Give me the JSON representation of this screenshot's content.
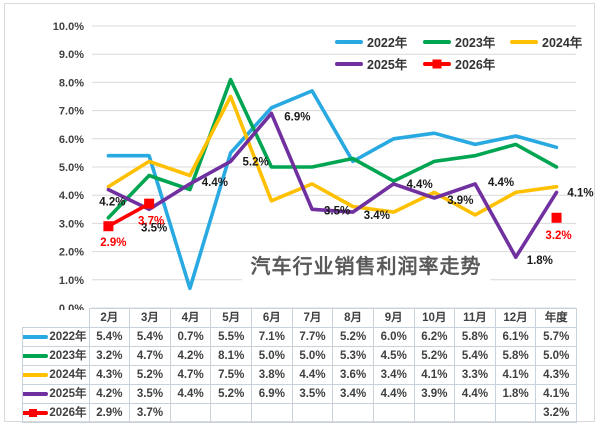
{
  "chart_data": {
    "type": "line",
    "title": "汽车行业销售利润率走势",
    "title_color": "#595959",
    "categories": [
      "2月",
      "3月",
      "4月",
      "5月",
      "6月",
      "7月",
      "8月",
      "9月",
      "10月",
      "11月",
      "12月",
      "年度"
    ],
    "y_axis": {
      "min": 0,
      "max": 10,
      "step": 1,
      "grid": true,
      "tick_labels": [
        "0.0%",
        "1.0%",
        "2.0%",
        "3.0%",
        "4.0%",
        "5.0%",
        "6.0%",
        "7.0%",
        "8.0%",
        "9.0%",
        "10.0%"
      ],
      "grid_color": "#d8d8d8",
      "tick_color": "#404040"
    },
    "legend": {
      "position": "top",
      "rows": [
        [
          "2022年",
          "2023年",
          "2024年"
        ],
        [
          "2025年",
          "2026年"
        ]
      ]
    },
    "series": [
      {
        "name": "2022年",
        "color": "#29A9E1",
        "marker": "none",
        "show_labels": false,
        "values": [
          5.4,
          5.4,
          0.7,
          5.5,
          7.1,
          7.7,
          5.2,
          6.0,
          6.2,
          5.8,
          6.1,
          5.7
        ]
      },
      {
        "name": "2023年",
        "color": "#00A551",
        "marker": "none",
        "show_labels": false,
        "values": [
          3.2,
          4.7,
          4.2,
          8.1,
          5.0,
          5.0,
          5.3,
          4.5,
          5.2,
          5.4,
          5.8,
          5.0
        ]
      },
      {
        "name": "2024年",
        "color": "#FFC000",
        "marker": "none",
        "show_labels": false,
        "values": [
          4.3,
          5.2,
          4.7,
          7.5,
          3.8,
          4.4,
          3.6,
          3.4,
          4.1,
          3.3,
          4.1,
          4.3
        ]
      },
      {
        "name": "2025年",
        "color": "#7030A0",
        "marker": "none",
        "show_labels": true,
        "label_color": "#1a1a1a",
        "values": [
          4.2,
          3.5,
          4.4,
          5.2,
          6.9,
          3.5,
          3.4,
          4.4,
          3.9,
          4.4,
          1.8,
          4.1
        ],
        "label_offsets": [
          [
            4,
            12
          ],
          [
            5,
            18
          ],
          [
            25,
            -2
          ],
          [
            25,
            0
          ],
          [
            26,
            3
          ],
          [
            25,
            1
          ],
          [
            24,
            3
          ],
          [
            26,
            0
          ],
          [
            26,
            2
          ],
          [
            26,
            -2
          ],
          [
            24,
            3
          ],
          [
            24,
            0
          ]
        ]
      },
      {
        "name": "2026年",
        "color": "#FE0000",
        "marker": "square",
        "show_labels": true,
        "label_color": "#FE0000",
        "values": [
          2.9,
          3.7,
          null,
          null,
          null,
          null,
          null,
          null,
          null,
          null,
          null,
          3.2
        ],
        "label_offsets": [
          [
            5,
            16
          ],
          [
            2,
            17
          ],
          null,
          null,
          null,
          null,
          null,
          null,
          null,
          null,
          null,
          [
            2,
            17
          ]
        ]
      }
    ]
  },
  "table": {
    "corner_label": "",
    "columns": [
      "2月",
      "3月",
      "4月",
      "5月",
      "6月",
      "7月",
      "8月",
      "9月",
      "10月",
      "11月",
      "12月",
      "年度"
    ],
    "rows": [
      {
        "label": "2022年",
        "cells": [
          "5.4%",
          "5.4%",
          "0.7%",
          "5.5%",
          "7.1%",
          "7.7%",
          "5.2%",
          "6.0%",
          "6.2%",
          "5.8%",
          "6.1%",
          "5.7%"
        ]
      },
      {
        "label": "2023年",
        "cells": [
          "3.2%",
          "4.7%",
          "4.2%",
          "8.1%",
          "5.0%",
          "5.0%",
          "5.3%",
          "4.5%",
          "5.2%",
          "5.4%",
          "5.8%",
          "5.0%"
        ]
      },
      {
        "label": "2024年",
        "cells": [
          "4.3%",
          "5.2%",
          "4.7%",
          "7.5%",
          "3.8%",
          "4.4%",
          "3.6%",
          "3.4%",
          "4.1%",
          "3.3%",
          "4.1%",
          "4.3%"
        ]
      },
      {
        "label": "2025年",
        "cells": [
          "4.2%",
          "3.5%",
          "4.4%",
          "5.2%",
          "6.9%",
          "3.5%",
          "3.4%",
          "4.4%",
          "3.9%",
          "4.4%",
          "1.8%",
          "4.1%"
        ]
      },
      {
        "label": "2026年",
        "cells": [
          "2.9%",
          "3.7%",
          "",
          "",
          "",
          "",
          "",
          "",
          "",
          "",
          "",
          "3.2%"
        ]
      }
    ]
  }
}
